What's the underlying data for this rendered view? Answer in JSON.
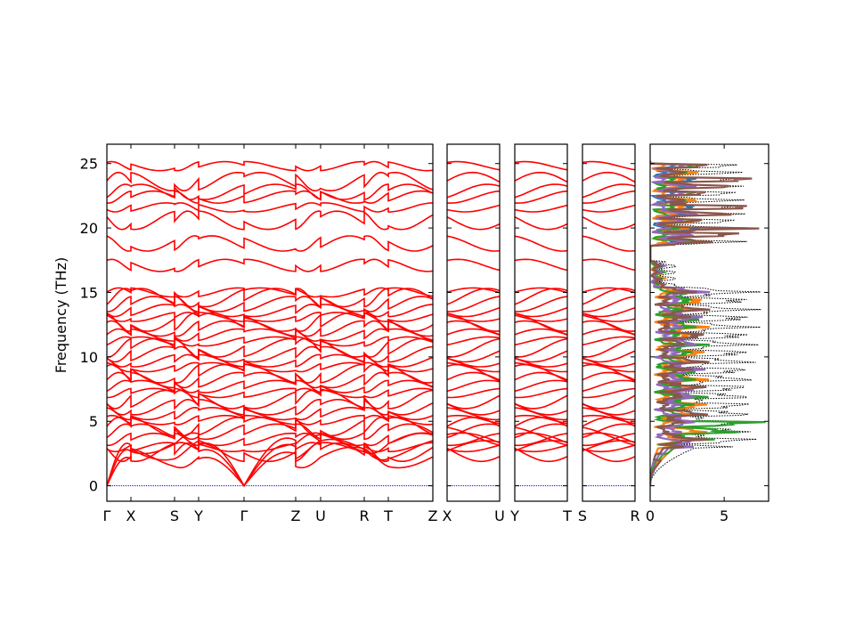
{
  "chart_data": {
    "type": "line",
    "ylabel": "Frequency (THz)",
    "ylim": [
      -1.2,
      26.5
    ],
    "yticks": [
      0,
      5,
      10,
      15,
      20,
      25
    ],
    "grid": false,
    "colors": {
      "bands": "#ff0000",
      "zero_line": "#0000ff",
      "dos_total": "#000000",
      "pdos": [
        "#1f77b4",
        "#ff7f0e",
        "#2ca02c",
        "#9467bd",
        "#8c564b"
      ]
    },
    "band_panels": [
      {
        "labels": [
          "Γ",
          "X",
          "S",
          "Y",
          "Γ",
          "Z",
          "U",
          "R",
          "T",
          "Z"
        ]
      },
      {
        "labels": [
          "X",
          "U"
        ]
      },
      {
        "labels": [
          "Y",
          "T"
        ]
      },
      {
        "labels": [
          "S",
          "R"
        ]
      }
    ],
    "band_left_levels": [
      0,
      0,
      0,
      2.6,
      3.0,
      3.6,
      4.2,
      4.6,
      5.1,
      5.6,
      6.1,
      6.7,
      7.2,
      7.7,
      8.2,
      8.7,
      9.2,
      9.7,
      10.2,
      10.7,
      11.2,
      11.7,
      12.2,
      12.7,
      13.1,
      13.6,
      14.1,
      14.6,
      15.0,
      17.1,
      18.8,
      20.6,
      21.6,
      22.4,
      22.8,
      23.6,
      24.8
    ],
    "dos_panel": {
      "xlim": [
        0,
        8
      ],
      "xticks": [
        0,
        5
      ],
      "xlabels": [
        "0",
        "5"
      ]
    }
  }
}
